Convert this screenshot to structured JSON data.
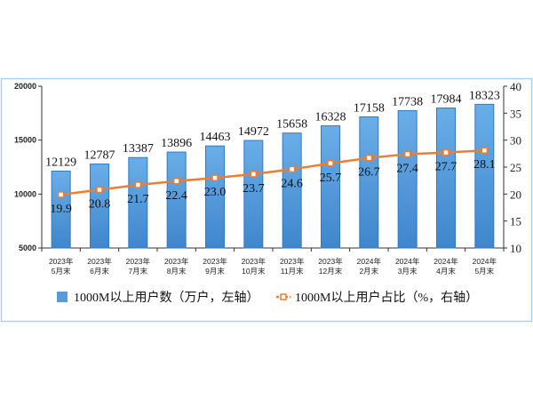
{
  "chart_data": {
    "type": "bar",
    "categories": [
      [
        "2023年",
        "5月末"
      ],
      [
        "2023年",
        "6月末"
      ],
      [
        "2023年",
        "7月末"
      ],
      [
        "2023年",
        "8月末"
      ],
      [
        "2023年",
        "9月末"
      ],
      [
        "2023年",
        "10月末"
      ],
      [
        "2023年",
        "11月末"
      ],
      [
        "2023年",
        "12月末"
      ],
      [
        "2024年",
        "2月末"
      ],
      [
        "2024年",
        "3月末"
      ],
      [
        "2024年",
        "4月末"
      ],
      [
        "2024年",
        "5月末"
      ]
    ],
    "series": [
      {
        "name": "1000M以上用户数（万户，左轴）",
        "type": "bar",
        "axis": "left",
        "color": "#5b9bd5",
        "values": [
          12129,
          12787,
          13387,
          13896,
          14463,
          14972,
          15658,
          16328,
          17158,
          17738,
          17984,
          18323
        ]
      },
      {
        "name": "1000M以上用户占比（%，右轴）",
        "type": "line",
        "axis": "right",
        "color": "#ed7d31",
        "values": [
          19.9,
          20.8,
          21.7,
          22.4,
          23.0,
          23.7,
          24.6,
          25.7,
          26.7,
          27.4,
          27.7,
          28.1
        ],
        "labels": [
          "19.9",
          "20.8",
          "21.7",
          "22.4",
          "23.0",
          "23.7",
          "24.6",
          "25.7",
          "26.7",
          "27.4",
          "27.7",
          "28.1"
        ]
      }
    ],
    "left_axis": {
      "range": [
        5000,
        20000
      ],
      "ticks": [
        "5000",
        "10000",
        "15000",
        "20000"
      ]
    },
    "right_axis": {
      "range": [
        10,
        40
      ],
      "ticks": [
        "10",
        "15",
        "20",
        "25",
        "30",
        "35",
        "40"
      ]
    },
    "legend_position": "bottom",
    "grid": false
  }
}
